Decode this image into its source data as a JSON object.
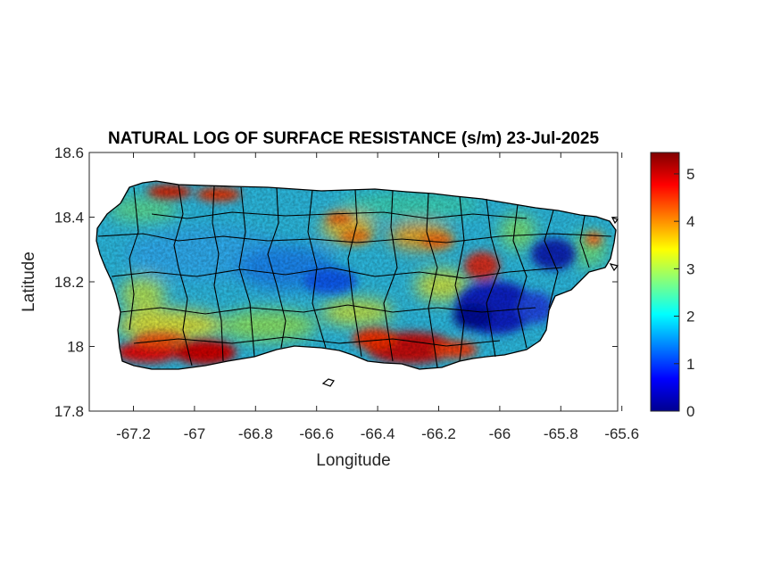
{
  "title": "NATURAL LOG OF SURFACE RESISTANCE (s/m) 23-Jul-2025",
  "xaxis": {
    "label": "Longitude",
    "ticks": [
      "-67.2",
      "-67",
      "-66.8",
      "-66.6",
      "-66.4",
      "-66.2",
      "-66",
      "-65.8",
      "-65.6"
    ]
  },
  "yaxis": {
    "label": "Latitude",
    "ticks": [
      "18.6",
      "18.4",
      "18.2",
      "18",
      "17.8"
    ]
  },
  "colorbar": {
    "ticks": [
      "0",
      "1",
      "2",
      "3",
      "4",
      "5"
    ],
    "min": 0,
    "max": 5.45,
    "colormap": "jet"
  },
  "map_data": {
    "region": "Puerto Rico",
    "lon_range": [
      -67.3,
      -65.58
    ],
    "lat_range": [
      17.8,
      18.6
    ],
    "hotspots": [
      {
        "lon": -67.18,
        "lat": 17.99,
        "value": 5.2
      },
      {
        "lon": -66.96,
        "lat": 17.98,
        "value": 5.3
      },
      {
        "lon": -66.85,
        "lat": 18.48,
        "value": 4.8
      },
      {
        "lon": -67.05,
        "lat": 18.48,
        "value": 4.9
      },
      {
        "lon": -66.27,
        "lat": 17.99,
        "value": 5.3
      },
      {
        "lon": -66.4,
        "lat": 18.03,
        "value": 4.9
      },
      {
        "lon": -66.13,
        "lat": 17.98,
        "value": 5.0
      },
      {
        "lon": -66.06,
        "lat": 18.25,
        "value": 4.8
      },
      {
        "lon": -66.4,
        "lat": 18.36,
        "value": 4.3
      },
      {
        "lon": -66.04,
        "lat": 18.12,
        "value": 0.6
      },
      {
        "lon": -65.8,
        "lat": 18.28,
        "value": 0.8
      },
      {
        "lon": -65.92,
        "lat": 18.1,
        "value": 1.0
      },
      {
        "lon": -66.55,
        "lat": 18.2,
        "value": 1.6
      }
    ]
  }
}
